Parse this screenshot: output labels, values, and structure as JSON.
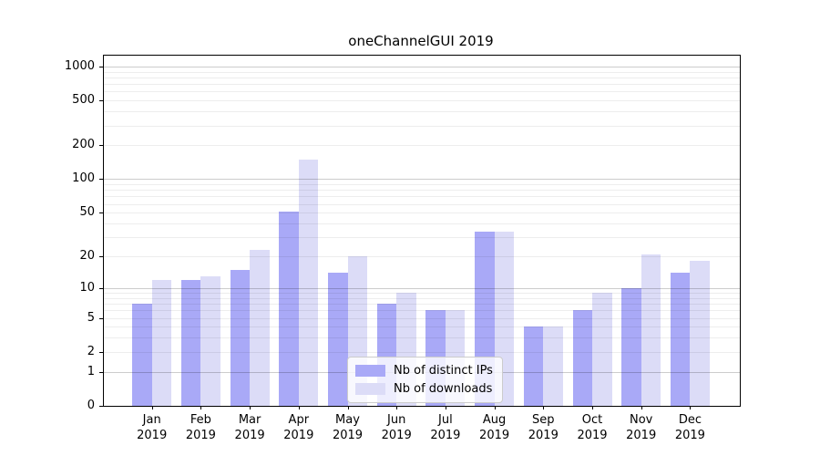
{
  "chart_data": {
    "type": "bar",
    "title": "oneChannelGUI 2019",
    "categories": [
      "Jan",
      "Feb",
      "Mar",
      "Apr",
      "May",
      "Jun",
      "Jul",
      "Aug",
      "Sep",
      "Oct",
      "Nov",
      "Dec"
    ],
    "category_year": "2019",
    "series": [
      {
        "name": "Nb of distinct IPs",
        "color": "#a9a9f7",
        "values": [
          7,
          12,
          15,
          51,
          14,
          7,
          6,
          34,
          4,
          6,
          10,
          14
        ]
      },
      {
        "name": "Nb of downloads",
        "color": "#dcdcf7",
        "values": [
          12,
          13,
          23,
          150,
          20,
          9,
          6,
          34,
          4,
          9,
          21,
          18
        ]
      }
    ],
    "yscale": "log10(1+x)",
    "yticks": [
      0,
      1,
      2,
      5,
      10,
      20,
      50,
      100,
      200,
      500,
      1000
    ],
    "ylim": [
      0,
      1000
    ],
    "grid": "horizontal, major at 1/10/100/1000, minor at 2-9 per decade",
    "legend_position": "lower-center-inside",
    "colors": {
      "major_grid": "#cccccc",
      "minor_grid": "#ececec",
      "axis": "#000000",
      "background": "#ffffff"
    }
  }
}
